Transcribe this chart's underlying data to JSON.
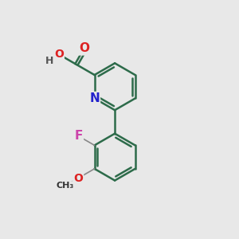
{
  "background_color": "#e8e8e8",
  "bond_color": "#2d6b4a",
  "bond_width": 1.8,
  "atoms": {
    "N": {
      "color": "#2222cc"
    },
    "O": {
      "color": "#dd2222"
    },
    "F": {
      "color": "#cc44aa"
    },
    "H": {
      "color": "#555555"
    },
    "C_label": {
      "color": "#333333"
    }
  },
  "figsize": [
    3.0,
    3.0
  ],
  "dpi": 100
}
